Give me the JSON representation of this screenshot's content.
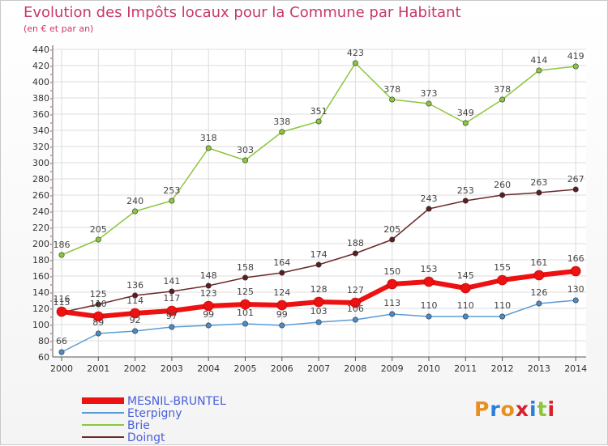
{
  "header": {
    "title": "Evolution des Impôts locaux pour la Commune par Habitant",
    "subtitle": "(en € et par an)"
  },
  "logo": {
    "text": "Proxiti",
    "colors": [
      "#e8901e",
      "#2b7fd8",
      "#e8901e",
      "#d8202a",
      "#2b7fd8",
      "#8cc63c",
      "#d8202a"
    ]
  },
  "chart_data": {
    "type": "line",
    "x": [
      2000,
      2001,
      2002,
      2003,
      2004,
      2005,
      2006,
      2007,
      2008,
      2009,
      2010,
      2011,
      2012,
      2013,
      2014
    ],
    "ylim": [
      60,
      440
    ],
    "yticks": [
      60,
      80,
      100,
      120,
      140,
      160,
      180,
      200,
      220,
      240,
      260,
      280,
      300,
      320,
      340,
      360,
      380,
      400,
      420,
      440
    ],
    "grid": true,
    "series": [
      {
        "name": "Brie",
        "color": "#8cc63c",
        "values": [
          186,
          205,
          240,
          253,
          318,
          303,
          338,
          351,
          423,
          378,
          373,
          349,
          378,
          414,
          419
        ]
      },
      {
        "name": "Doingt",
        "color": "#6b2a2a",
        "values": [
          115,
          125,
          136,
          141,
          148,
          158,
          164,
          174,
          188,
          205,
          243,
          253,
          260,
          263,
          267
        ]
      },
      {
        "name": "Eterpigny",
        "color": "#5b9bd5",
        "values": [
          66,
          89,
          92,
          97,
          99,
          101,
          99,
          103,
          106,
          113,
          110,
          110,
          110,
          126,
          130
        ]
      },
      {
        "name": "MESNIL-BRUNTEL",
        "color": "#ee1111",
        "values": [
          116,
          110,
          114,
          117,
          123,
          125,
          124,
          128,
          127,
          150,
          153,
          145,
          155,
          161,
          166
        ]
      }
    ],
    "legend": [
      {
        "name": "MESNIL-BRUNTEL",
        "color": "#ee1111"
      },
      {
        "name": "Eterpigny",
        "color": "#5b9bd5"
      },
      {
        "name": "Brie",
        "color": "#8cc63c"
      },
      {
        "name": "Doingt",
        "color": "#6b2a2a"
      }
    ]
  }
}
